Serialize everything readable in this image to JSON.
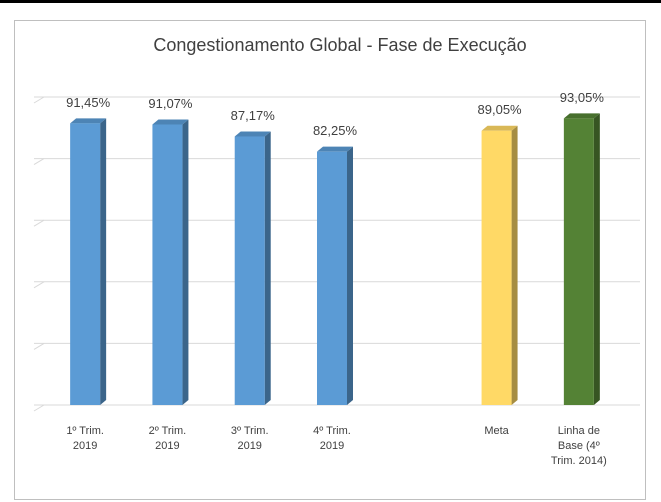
{
  "chart_data": {
    "type": "bar3d",
    "title": "Congestionamento Global - Fase de Execução",
    "categories": [
      "1º Trim. 2019",
      "2º Trim. 2019",
      "3º Trim. 2019",
      "4º Trim. 2019",
      null,
      "Meta",
      "Linha de Base (4º Trim. 2014)"
    ],
    "values": [
      91.45,
      91.07,
      87.17,
      82.25,
      null,
      89.05,
      93.05
    ],
    "value_labels": [
      "91,45%",
      "91,07%",
      "87,17%",
      "82,25%",
      null,
      "89,05%",
      "93,05%"
    ],
    "colors": [
      "#5b9bd5",
      "#5b9bd5",
      "#5b9bd5",
      "#5b9bd5",
      null,
      "#ffd966",
      "#548235"
    ],
    "ylim": [
      0,
      100
    ],
    "yticks": [
      0,
      20,
      40,
      60,
      80,
      100
    ],
    "grid": true
  }
}
